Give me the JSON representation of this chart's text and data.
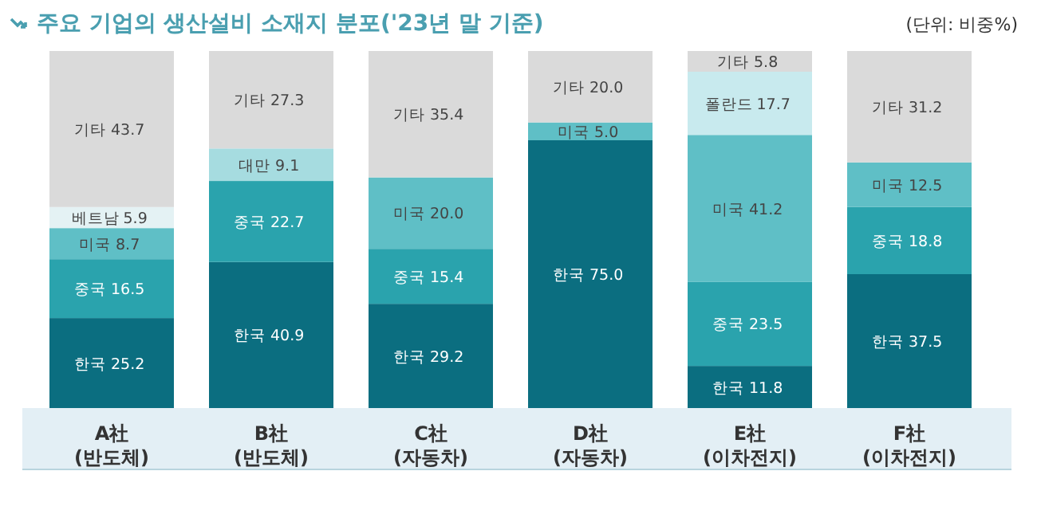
{
  "chart_data": {
    "type": "bar",
    "title": "주요 기업의 생산설비 소재지 분포('23년 말 기준)",
    "subtitle": "(단위: 비중%)",
    "categories": [
      "A社\n(반도체)",
      "B社\n(반도체)",
      "C社\n(자동차)",
      "D社\n(자동차)",
      "E社\n(이차전지)",
      "F社\n(이차전지)"
    ],
    "stacked": true,
    "tick_labels": "x",
    "series": [
      {
        "name": "한국",
        "color": "#0b6e80",
        "values": [
          25.2,
          40.9,
          29.2,
          75.0,
          11.8,
          37.5
        ],
        "value_labels": [
          "25.2",
          "40.9",
          "29.2",
          "75.0",
          "11.8",
          "37.5"
        ]
      },
      {
        "name": "중국",
        "color": "#2aa3ad",
        "values": [
          16.5,
          22.7,
          15.4,
          null,
          23.5,
          18.8
        ],
        "value_labels": [
          "16.5",
          "22.7",
          "15.4",
          null,
          "23.5",
          "18.8"
        ]
      },
      {
        "name": "미국",
        "color": "#5fbfc6",
        "values": [
          8.7,
          null,
          20.0,
          5.0,
          41.2,
          12.5
        ],
        "value_labels": [
          "8.7",
          null,
          "20.0",
          "5.0",
          "41.2",
          "12.5"
        ]
      },
      {
        "name": "베트남",
        "color": "#e4f2f4",
        "values": [
          5.9,
          null,
          null,
          null,
          null,
          null
        ],
        "value_labels": [
          "5.9",
          null,
          null,
          null,
          null,
          null
        ]
      },
      {
        "name": "대만",
        "color": "#a6dce0",
        "values": [
          null,
          9.1,
          null,
          null,
          null,
          null
        ],
        "value_labels": [
          null,
          "9.1",
          null,
          null,
          null,
          null
        ]
      },
      {
        "name": "폴란드",
        "color": "#c8eaee",
        "values": [
          null,
          null,
          null,
          null,
          17.7,
          null
        ],
        "value_labels": [
          null,
          null,
          null,
          null,
          "17.7",
          null
        ]
      },
      {
        "name": "기타",
        "color": "#dadada",
        "values": [
          43.7,
          27.3,
          35.4,
          20.0,
          5.8,
          31.2
        ],
        "value_labels": [
          "43.7",
          "27.3",
          "35.4",
          "20.0",
          "5.8",
          "31.2"
        ]
      }
    ]
  }
}
